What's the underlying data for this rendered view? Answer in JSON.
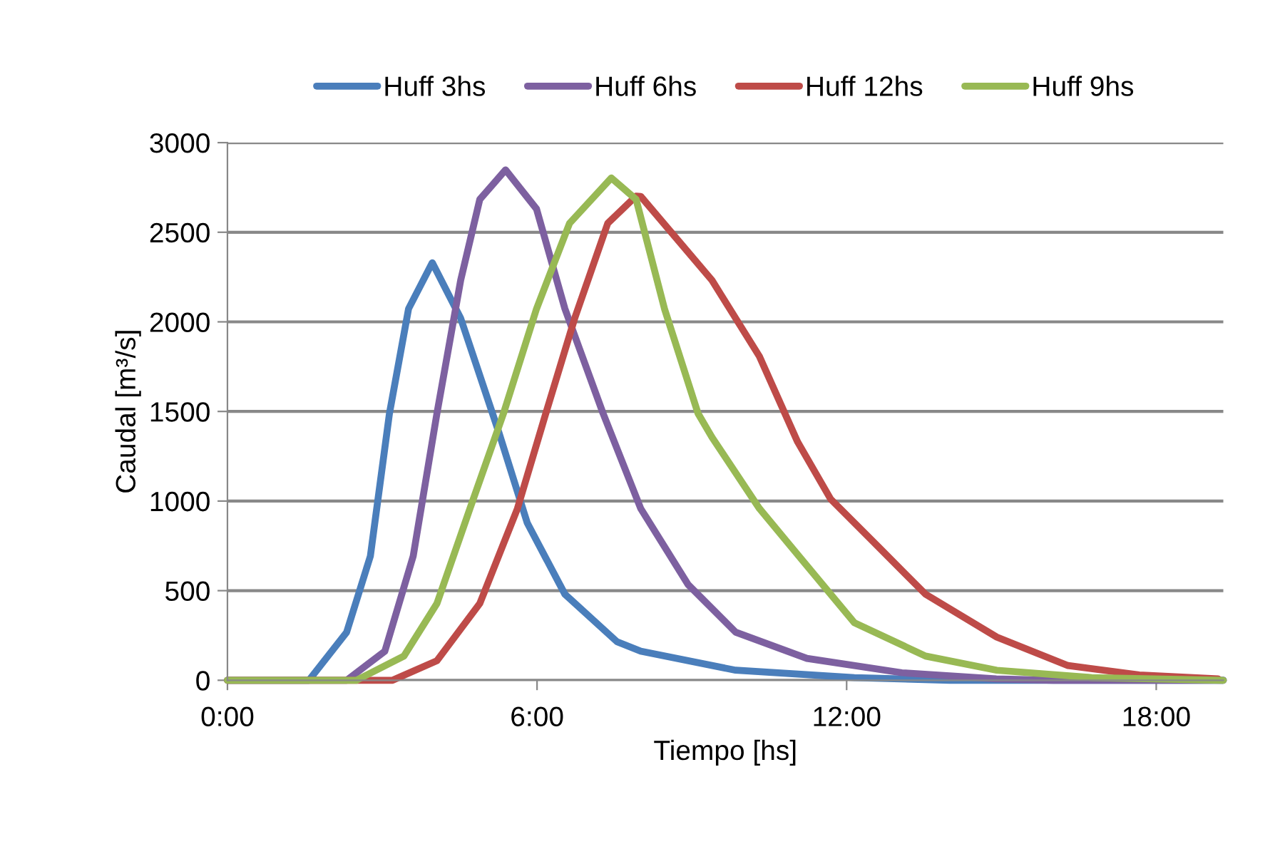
{
  "chart_data": {
    "type": "line",
    "xlabel": "Tiempo [hs]",
    "ylabel": "Caudal [m³/s]",
    "xlim": [
      0,
      19.3
    ],
    "xticks": [
      {
        "value": 0,
        "label": "0:00"
      },
      {
        "value": 6,
        "label": "6:00"
      },
      {
        "value": 12,
        "label": "12:00"
      },
      {
        "value": 18,
        "label": "18:00"
      }
    ],
    "ylim": [
      0,
      3000
    ],
    "yticks": [
      0,
      500,
      1000,
      1500,
      2000,
      2500,
      3000
    ],
    "grid": "y",
    "legend": "top",
    "marker": "none",
    "line_style": "solid",
    "series": [
      {
        "name": "Huff 3hs",
        "color": "#4a7ebb",
        "x": [
          0,
          1.58,
          2.31,
          2.77,
          3.14,
          3.51,
          3.97,
          4.52,
          5.26,
          5.81,
          6.54,
          7.55,
          8.01,
          9.85,
          12.15,
          14,
          19.3
        ],
        "values": [
          0,
          0,
          268,
          693,
          1489,
          2073,
          2330,
          2020,
          1383,
          878,
          480,
          215,
          162,
          56,
          15,
          0,
          0
        ]
      },
      {
        "name": "Huff 6hs",
        "color": "#7d60a0",
        "x": [
          0,
          2.31,
          3.05,
          3.6,
          4.06,
          4.52,
          4.89,
          5.39,
          5.99,
          6.54,
          7.28,
          8.01,
          8.93,
          9.85,
          11.23,
          13.07,
          14.9,
          16,
          19.3
        ],
        "values": [
          0,
          0,
          162,
          693,
          1489,
          2232,
          2683,
          2848,
          2630,
          2073,
          1489,
          958,
          533,
          268,
          122,
          42,
          8,
          0,
          0
        ]
      },
      {
        "name": "Huff 12hs",
        "color": "#be4b48",
        "x": [
          0,
          3.2,
          4.06,
          4.89,
          5.62,
          6.17,
          6.73,
          7.37,
          7.92,
          8.01,
          9.39,
          10.31,
          11.05,
          11.69,
          12.61,
          13.53,
          14.91,
          16.29,
          17.67,
          19.2
        ],
        "values": [
          0,
          0,
          109,
          428,
          958,
          1489,
          2020,
          2550,
          2702,
          2700,
          2232,
          1807,
          1330,
          1011,
          746,
          480,
          241,
          82,
          30,
          8
        ]
      },
      {
        "name": "Huff 9hs",
        "color": "#98b954",
        "x": [
          0,
          2.5,
          3.42,
          4.06,
          4.7,
          5.35,
          5.99,
          6.63,
          7.44,
          7.92,
          8.47,
          9.12,
          9.39,
          10.31,
          11.23,
          12.15,
          13.53,
          14.91,
          16.75,
          19.3
        ],
        "values": [
          0,
          0,
          135,
          428,
          958,
          1489,
          2073,
          2550,
          2803,
          2683,
          2073,
          1489,
          1356,
          958,
          639,
          321,
          135,
          56,
          15,
          0
        ]
      }
    ]
  }
}
